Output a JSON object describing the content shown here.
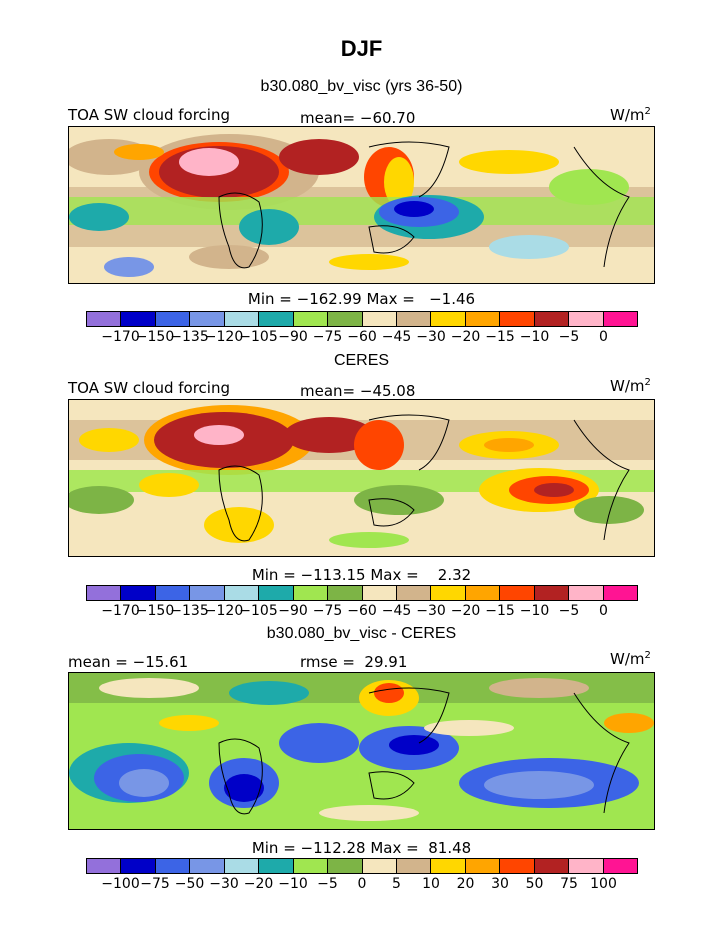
{
  "title": "DJF",
  "panels": [
    {
      "title": "b30.080_bv_visc (yrs 36-50)",
      "left_label": "TOA SW cloud forcing",
      "center_label": "mean= −60.70",
      "units": "W/m",
      "units_sup": "2",
      "minmax": "Min = −162.99 Max =   −1.46",
      "colorbar_ticks": [
        "−170",
        "−150",
        "−135",
        "−120",
        "−105",
        "−90",
        "−75",
        "−60",
        "−45",
        "−30",
        "−20",
        "−15",
        "−10",
        "−5",
        "0"
      ]
    },
    {
      "title": "CERES",
      "left_label": "TOA SW cloud forcing",
      "center_label": "mean= −45.08",
      "units": "W/m",
      "units_sup": "2",
      "minmax": "Min = −113.15 Max =    2.32",
      "colorbar_ticks": [
        "−170",
        "−150",
        "−135",
        "−120",
        "−105",
        "−90",
        "−75",
        "−60",
        "−45",
        "−30",
        "−20",
        "−15",
        "−10",
        "−5",
        "0"
      ]
    },
    {
      "title": "b30.080_bv_visc - CERES",
      "left_label": "mean = −15.61",
      "center_label": "rmse =  29.91",
      "units": "W/m",
      "units_sup": "2",
      "minmax": "Min = −112.28 Max =  81.48",
      "colorbar_ticks": [
        "−100",
        "−75",
        "−50",
        "−30",
        "−20",
        "−10",
        "−5",
        "0",
        "5",
        "10",
        "20",
        "30",
        "50",
        "75",
        "100"
      ]
    }
  ],
  "colors": {
    "palette": [
      "#9370db",
      "#0000c8",
      "#3c64e6",
      "#7896e6",
      "#aadce6",
      "#1eaaaa",
      "#a0e650",
      "#7db446",
      "#f5e6be",
      "#d2b48c",
      "#ffd700",
      "#ffa500",
      "#ff4500",
      "#b22222",
      "#ffb4c8",
      "#ff1493"
    ]
  }
}
